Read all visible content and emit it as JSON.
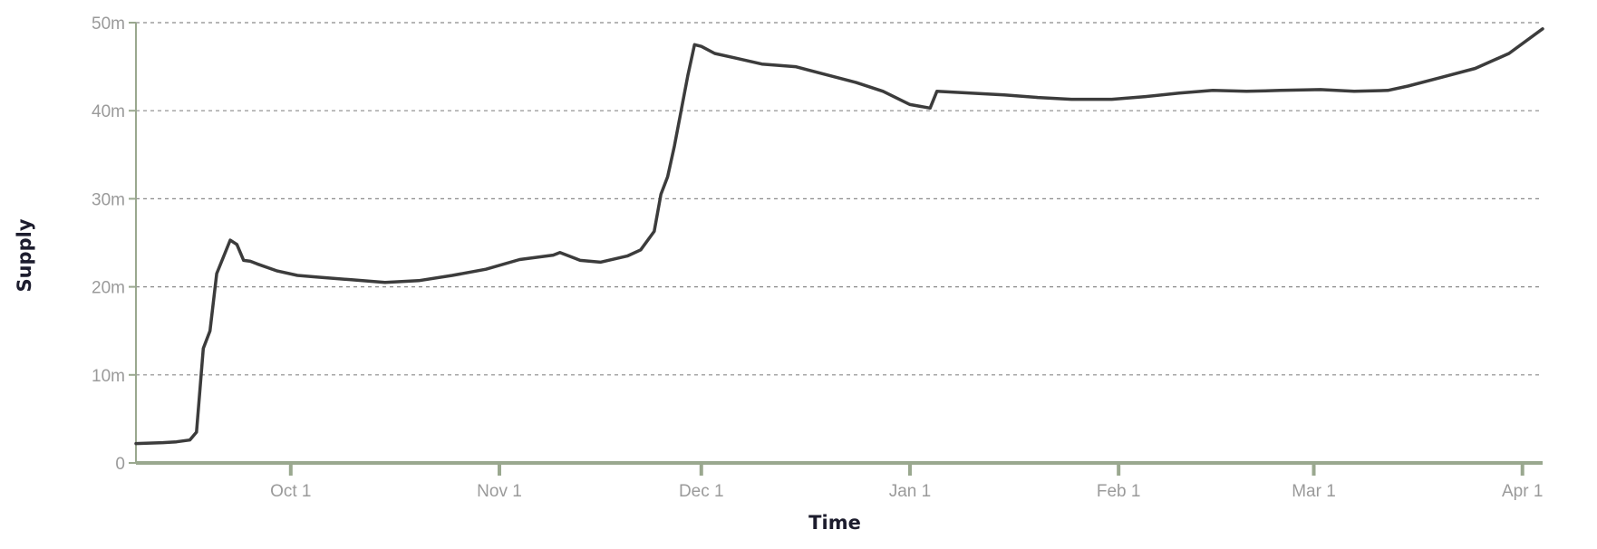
{
  "chart_data": {
    "type": "line",
    "xlabel": "Time",
    "ylabel": "Supply",
    "x_ticks": [
      {
        "label": "Oct 1",
        "date": "2023-10-01"
      },
      {
        "label": "Nov 1",
        "date": "2023-11-01"
      },
      {
        "label": "Dec 1",
        "date": "2023-12-01"
      },
      {
        "label": "Jan 1",
        "date": "2024-01-01"
      },
      {
        "label": "Feb 1",
        "date": "2024-02-01"
      },
      {
        "label": "Mar 1",
        "date": "2024-03-01"
      },
      {
        "label": "Apr 1",
        "date": "2024-04-01"
      }
    ],
    "xlim": [
      "2023-09-08",
      "2024-04-04"
    ],
    "y_ticks": [
      {
        "label": "0",
        "value": 0
      },
      {
        "label": "10m",
        "value": 10000000
      },
      {
        "label": "20m",
        "value": 20000000
      },
      {
        "label": "30m",
        "value": 30000000
      },
      {
        "label": "40m",
        "value": 40000000
      },
      {
        "label": "50m",
        "value": 50000000
      }
    ],
    "ylim": [
      0,
      50000000
    ],
    "grid": "horizontal-dashed",
    "legend": "none",
    "line_color": "#3c3c3c",
    "axis_color": "#9aa88f",
    "series": [
      {
        "x": [
          "2023-09-08",
          "2023-09-12",
          "2023-09-14",
          "2023-09-16",
          "2023-09-17",
          "2023-09-18",
          "2023-09-19",
          "2023-09-20",
          "2023-09-22",
          "2023-09-23",
          "2023-09-24",
          "2023-09-25",
          "2023-09-26",
          "2023-09-29",
          "2023-10-02",
          "2023-10-05",
          "2023-10-10",
          "2023-10-15",
          "2023-10-20",
          "2023-10-25",
          "2023-10-30",
          "2023-11-04",
          "2023-11-09",
          "2023-11-10",
          "2023-11-13",
          "2023-11-16",
          "2023-11-20",
          "2023-11-22",
          "2023-11-24",
          "2023-11-25",
          "2023-11-26",
          "2023-11-27",
          "2023-11-28",
          "2023-11-29",
          "2023-11-30",
          "2023-12-01",
          "2023-12-03",
          "2023-12-06",
          "2023-12-10",
          "2023-12-15",
          "2023-12-20",
          "2023-12-24",
          "2023-12-28",
          "2024-01-01",
          "2024-01-04",
          "2024-01-05",
          "2024-01-10",
          "2024-01-15",
          "2024-01-20",
          "2024-01-25",
          "2024-01-31",
          "2024-02-05",
          "2024-02-10",
          "2024-02-15",
          "2024-02-20",
          "2024-02-25",
          "2024-03-02",
          "2024-03-07",
          "2024-03-12",
          "2024-03-15",
          "2024-03-20",
          "2024-03-25",
          "2024-03-30",
          "2024-04-04"
        ],
        "y": [
          2200000,
          2300000,
          2400000,
          2600000,
          3500000,
          13000000,
          15000000,
          21500000,
          25300000,
          24800000,
          23000000,
          22900000,
          22600000,
          21800000,
          21300000,
          21100000,
          20800000,
          20500000,
          20700000,
          21300000,
          22000000,
          23100000,
          23600000,
          23900000,
          23000000,
          22800000,
          23500000,
          24200000,
          26300000,
          30500000,
          32500000,
          36000000,
          40000000,
          44000000,
          47500000,
          47300000,
          46500000,
          46000000,
          45300000,
          45000000,
          44000000,
          43200000,
          42200000,
          40700000,
          40300000,
          42200000,
          42000000,
          41800000,
          41500000,
          41300000,
          41300000,
          41600000,
          42000000,
          42300000,
          42200000,
          42300000,
          42400000,
          42200000,
          42300000,
          42800000,
          43800000,
          44800000,
          46500000,
          49300000
        ]
      }
    ]
  }
}
